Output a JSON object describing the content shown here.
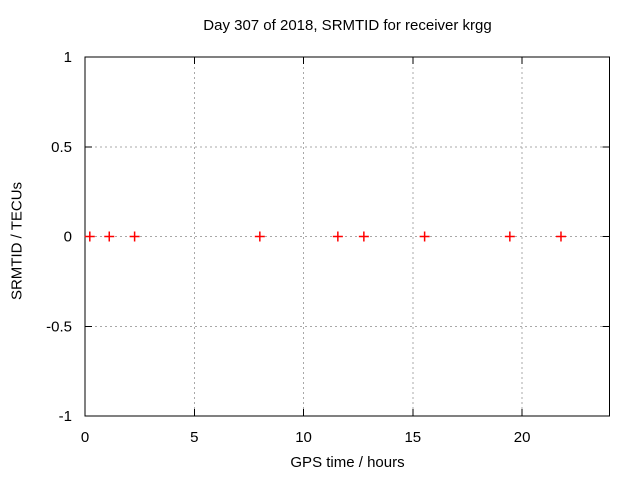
{
  "window": {
    "background": "#ffffff"
  },
  "chart_data": {
    "type": "scatter",
    "title": "Day 307 of 2018, SRMTID for receiver krgg",
    "xlabel": "GPS time / hours",
    "ylabel": "SRMTID / TECUs",
    "xlim": [
      0,
      24
    ],
    "ylim": [
      -1,
      1
    ],
    "xticks": [
      0,
      5,
      10,
      15,
      20
    ],
    "yticks": [
      1,
      0.5,
      0,
      -0.5,
      -1
    ],
    "grid": true,
    "grid_style": "dotted",
    "legend": "none",
    "marker": "plus",
    "colors": {
      "marker": "#ff0000",
      "grid": "#a8a8a8",
      "axis": "#000000",
      "text": "#000000",
      "background": "#ffffff"
    },
    "series": [
      {
        "name": "SRMTID",
        "x": [
          0.22,
          1.11,
          2.27,
          8.0,
          11.57,
          12.76,
          15.54,
          19.44,
          21.78
        ],
        "y": [
          0,
          0,
          0,
          0,
          0,
          0,
          0,
          0,
          0
        ]
      }
    ]
  }
}
